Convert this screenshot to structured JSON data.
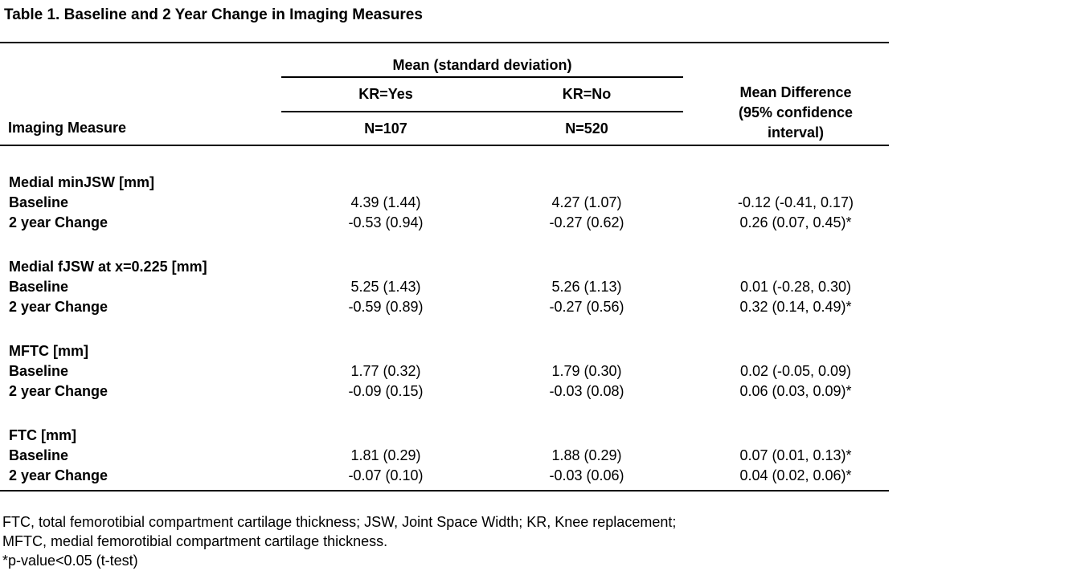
{
  "title": "Table 1. Baseline and 2 Year Change in Imaging Measures",
  "table": {
    "col1_header": "Imaging Measure",
    "span_header": "Mean (standard deviation)",
    "kr_yes_label": "KR=Yes",
    "kr_no_label": "KR=No",
    "kr_yes_n": "N=107",
    "kr_no_n": "N=520",
    "diff_header_lines": [
      "Mean Difference",
      "(95% confidence",
      "interval)"
    ],
    "groups": [
      {
        "name": "Medial minJSW [mm]",
        "rows": [
          {
            "label": "Baseline",
            "kr_yes": "4.39 (1.44)",
            "kr_no": "4.27 (1.07)",
            "diff": "-0.12 (-0.41, 0.17)"
          },
          {
            "label": "2 year Change",
            "kr_yes": "-0.53 (0.94)",
            "kr_no": "-0.27 (0.62)",
            "diff": "0.26 (0.07, 0.45)*"
          }
        ]
      },
      {
        "name": "Medial fJSW at x=0.225 [mm]",
        "rows": [
          {
            "label": "Baseline",
            "kr_yes": "5.25 (1.43)",
            "kr_no": "5.26 (1.13)",
            "diff": "0.01 (-0.28, 0.30)"
          },
          {
            "label": "2 year Change",
            "kr_yes": "-0.59 (0.89)",
            "kr_no": "-0.27 (0.56)",
            "diff": "0.32 (0.14, 0.49)*"
          }
        ]
      },
      {
        "name": "MFTC [mm]",
        "rows": [
          {
            "label": "Baseline",
            "kr_yes": "1.77 (0.32)",
            "kr_no": "1.79 (0.30)",
            "diff": "0.02 (-0.05, 0.09)"
          },
          {
            "label": "2 year Change",
            "kr_yes": "-0.09 (0.15)",
            "kr_no": "-0.03 (0.08)",
            "diff": "0.06 (0.03, 0.09)*"
          }
        ]
      },
      {
        "name": "FTC [mm]",
        "rows": [
          {
            "label": "Baseline",
            "kr_yes": "1.81 (0.29)",
            "kr_no": "1.88 (0.29)",
            "diff": "0.07 (0.01, 0.13)*"
          },
          {
            "label": "2 year Change",
            "kr_yes": "-0.07 (0.10)",
            "kr_no": "-0.03 (0.06)",
            "diff": "0.04 (0.02, 0.06)*"
          }
        ]
      }
    ]
  },
  "footnotes": [
    "FTC, total femorotibial compartment cartilage thickness; JSW, Joint Space Width; KR, Knee replacement;",
    "MFTC, medial femorotibial compartment cartilage thickness.",
    "*p-value<0.05 (t-test)"
  ]
}
